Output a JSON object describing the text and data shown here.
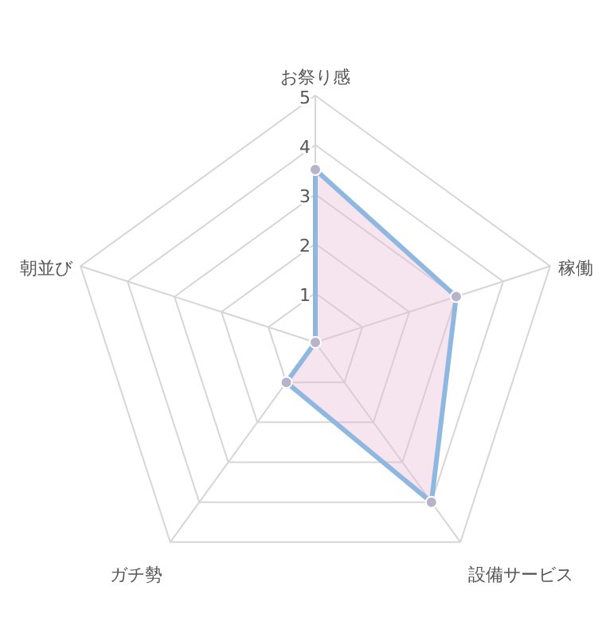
{
  "chart_data": {
    "type": "radar",
    "categories": [
      "お祭り感",
      "稼働",
      "設備サービス",
      "ガチ勢",
      "朝並び"
    ],
    "series": [
      {
        "color": "#8fb8e0",
        "values": [
          3.5,
          3,
          4,
          1,
          0
        ]
      }
    ],
    "ylim": [
      0,
      5
    ],
    "yticks": [
      1,
      2,
      3,
      4,
      5
    ],
    "grid": true,
    "marker": "circle"
  }
}
